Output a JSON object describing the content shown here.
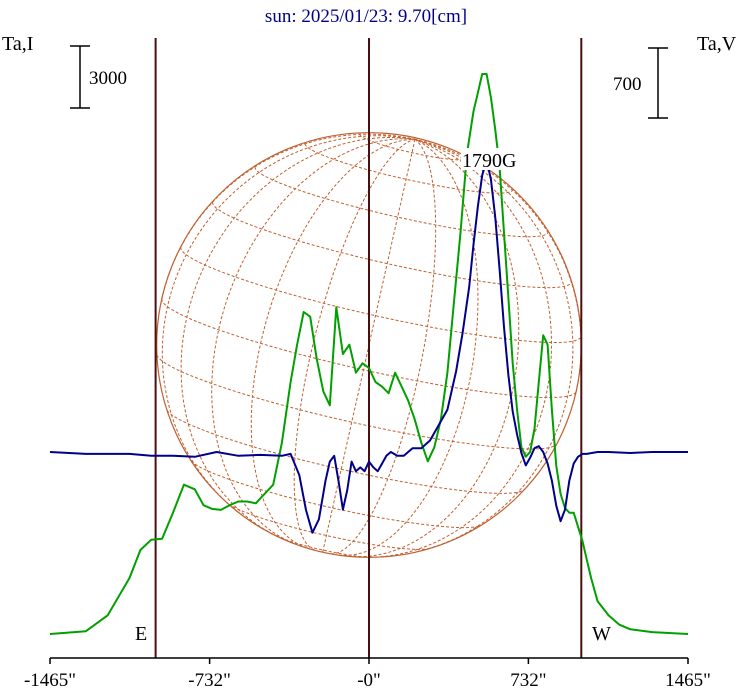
{
  "chart_data": {
    "type": "line",
    "title": "sun: 2025/01/23: 9.70[cm]",
    "left_axis_label": "Ta,I",
    "right_axis_label": "Ta,V",
    "left_scale_label": "3000",
    "right_scale_label": "700",
    "peak_annotation": "1790G",
    "east_label": "E",
    "west_label": "W",
    "x_ticks": [
      {
        "value": -1465,
        "label": "-1465\""
      },
      {
        "value": -732,
        "label": "-732\""
      },
      {
        "value": 0,
        "label": "-0\""
      },
      {
        "value": 732,
        "label": "732\""
      },
      {
        "value": 1465,
        "label": "1465\""
      }
    ],
    "xlim": [
      -1465,
      1465
    ],
    "ylim_intensity": [
      0,
      6000
    ],
    "ylim_polarization": [
      -600,
      1400
    ],
    "vertical_markers": [
      -980,
      0,
      975
    ],
    "limb_markers": [
      -975,
      975
    ],
    "colors": {
      "intensity": "#00a000",
      "polarization": "#00008b",
      "sun_grid": "#c06030",
      "markers": "#4a1010",
      "axis": "#000000",
      "title": "#00008b"
    },
    "series": [
      {
        "name": "Ta,I",
        "x": [
          -1465,
          -1300,
          -1200,
          -1100,
          -1050,
          -1000,
          -950,
          -900,
          -850,
          -800,
          -760,
          -720,
          -680,
          -640,
          -600,
          -560,
          -520,
          -480,
          -440,
          -400,
          -360,
          -330,
          -300,
          -270,
          -240,
          -210,
          -180,
          -150,
          -120,
          -90,
          -60,
          -30,
          0,
          30,
          60,
          90,
          120,
          150,
          180,
          210,
          240,
          270,
          300,
          330,
          360,
          390,
          420,
          450,
          480,
          500,
          520,
          540,
          560,
          580,
          600,
          620,
          640,
          660,
          680,
          700,
          720,
          740,
          760,
          780,
          800,
          820,
          840,
          860,
          880,
          900,
          920,
          940,
          960,
          980,
          1000,
          1020,
          1050,
          1100,
          1150,
          1200,
          1300,
          1465
        ],
        "y": [
          0,
          30,
          200,
          600,
          900,
          1010,
          1020,
          1300,
          1600,
          1550,
          1380,
          1340,
          1330,
          1380,
          1420,
          1420,
          1400,
          1500,
          1600,
          2050,
          2700,
          3100,
          3450,
          3400,
          2950,
          2600,
          2450,
          3500,
          3000,
          3100,
          2800,
          2900,
          2850,
          2700,
          2650,
          2580,
          2800,
          2650,
          2500,
          2300,
          2050,
          1850,
          2000,
          2300,
          2800,
          3550,
          4300,
          5150,
          5600,
          5800,
          6000,
          6000,
          5750,
          5400,
          5000,
          4300,
          3600,
          2900,
          2400,
          2000,
          1900,
          1950,
          2200,
          2700,
          3200,
          3100,
          2400,
          1800,
          1500,
          1350,
          1300,
          1300,
          1150,
          1000,
          800,
          600,
          350,
          200,
          100,
          50,
          20,
          0
        ]
      },
      {
        "name": "Ta,V",
        "x": [
          -1465,
          -1300,
          -1100,
          -1000,
          -900,
          -800,
          -700,
          -600,
          -500,
          -400,
          -360,
          -320,
          -290,
          -260,
          -230,
          -200,
          -180,
          -160,
          -140,
          -120,
          -100,
          -80,
          -60,
          -40,
          -20,
          0,
          20,
          40,
          60,
          80,
          100,
          130,
          160,
          200,
          240,
          280,
          320,
          360,
          400,
          430,
          460,
          480,
          500,
          520,
          540,
          560,
          580,
          600,
          620,
          640,
          660,
          680,
          700,
          720,
          740,
          760,
          780,
          800,
          820,
          840,
          860,
          880,
          900,
          920,
          940,
          960,
          980,
          1000,
          1050,
          1100,
          1200,
          1300,
          1465
        ],
        "y": [
          0,
          -10,
          -10,
          -20,
          -20,
          -25,
          0,
          -20,
          -15,
          -20,
          -10,
          -120,
          -300,
          -420,
          -350,
          -150,
          -50,
          -20,
          -150,
          -300,
          -200,
          -50,
          -100,
          -80,
          -100,
          -50,
          -80,
          -100,
          -60,
          -20,
          0,
          -20,
          -20,
          20,
          20,
          60,
          140,
          220,
          420,
          620,
          860,
          1080,
          1280,
          1440,
          1520,
          1420,
          1220,
          950,
          650,
          400,
          210,
          90,
          -5,
          -70,
          -30,
          20,
          30,
          0,
          -60,
          -150,
          -280,
          -360,
          -300,
          -150,
          -60,
          -25,
          -10,
          -10,
          0,
          0,
          -5,
          0,
          0
        ]
      }
    ]
  }
}
